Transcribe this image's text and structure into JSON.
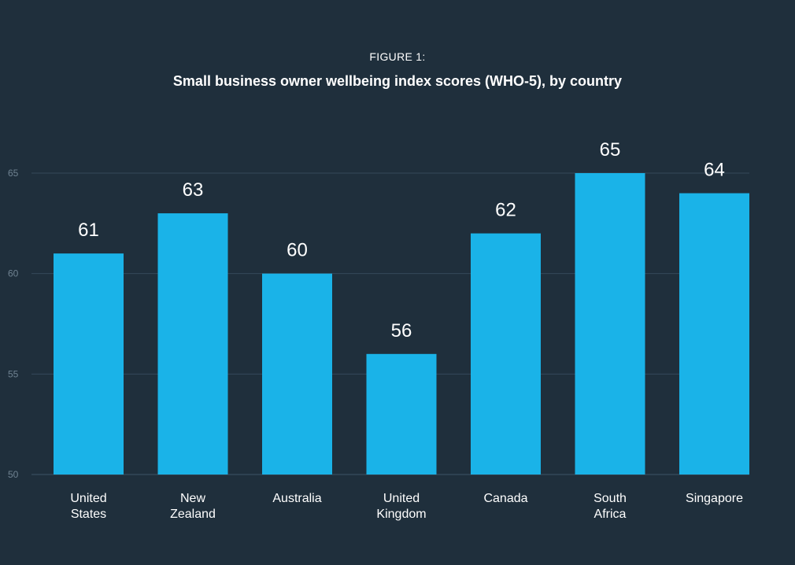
{
  "figure_label": "FIGURE 1:",
  "colors": {
    "background": "#1f2f3c",
    "bar": "#1ab3e8",
    "gridline": "#34495a",
    "tick_text": "#6f8291",
    "text": "#ffffff"
  },
  "chart_data": {
    "type": "bar",
    "title": "Small business owner wellbeing index scores (WHO-5), by country",
    "categories": [
      [
        "United",
        "States"
      ],
      [
        "New",
        "Zealand"
      ],
      [
        "Australia"
      ],
      [
        "United",
        "Kingdom"
      ],
      [
        "Canada"
      ],
      [
        "South",
        "Africa"
      ],
      [
        "Singapore"
      ]
    ],
    "values": [
      61,
      63,
      60,
      56,
      62,
      65,
      64
    ],
    "data_labels": [
      "61",
      "63",
      "60",
      "56",
      "62",
      "65",
      "64"
    ],
    "ylim": [
      50,
      65
    ],
    "yticks": [
      50,
      55,
      60,
      65
    ],
    "xlabel": "",
    "ylabel": "",
    "grid": true,
    "legend": "none"
  }
}
